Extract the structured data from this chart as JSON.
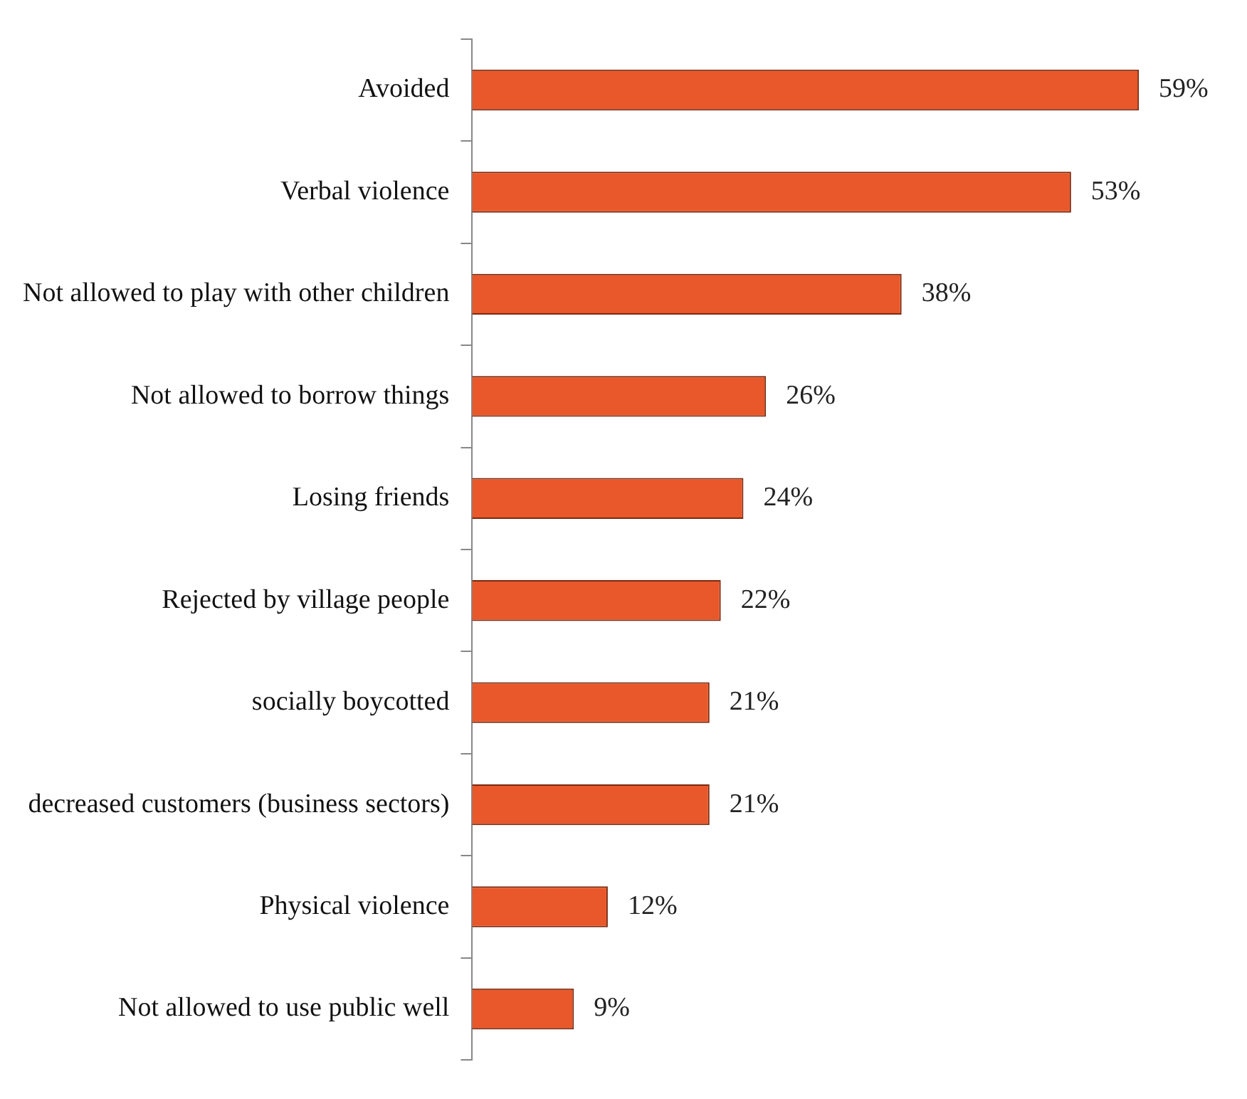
{
  "chart_data": {
    "type": "bar",
    "orientation": "horizontal",
    "categories": [
      "Avoided",
      "Verbal violence",
      "Not allowed to play with other children",
      "Not allowed to borrow things",
      "Losing friends",
      "Rejected by village people",
      "socially boycotted",
      "decreased customers (business sectors)",
      "Physical violence",
      "Not allowed to use public well"
    ],
    "values": [
      59,
      53,
      38,
      26,
      24,
      22,
      21,
      21,
      12,
      9
    ],
    "value_labels": [
      "59%",
      "53%",
      "38%",
      "26%",
      "24%",
      "22%",
      "21%",
      "21%",
      "12%",
      "9%"
    ],
    "color": "#e8582a",
    "grid": false,
    "legend": false,
    "tick_labels": "y"
  }
}
